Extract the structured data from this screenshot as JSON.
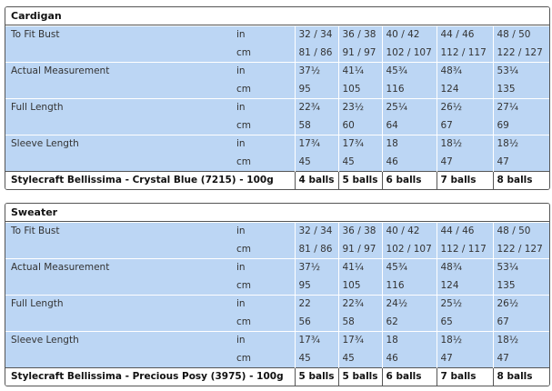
{
  "tables": [
    {
      "title": "Cardigan",
      "rows": [
        {
          "label": "To Fit Bust",
          "in": [
            "32 / 34",
            "36 / 38",
            "40 / 42",
            "44 / 46",
            "48 / 50"
          ],
          "cm": [
            "81 / 86",
            "91 / 97",
            "102 / 107",
            "112 / 117",
            "122 / 127"
          ]
        },
        {
          "label": "Actual Measurement",
          "in": [
            "37½",
            "41¼",
            "45¾",
            "48¾",
            "53¼"
          ],
          "cm": [
            "95",
            "105",
            "116",
            "124",
            "135"
          ]
        },
        {
          "label": "Full Length",
          "in": [
            "22¾",
            "23½",
            "25¼",
            "26½",
            "27¼"
          ],
          "cm": [
            "58",
            "60",
            "64",
            "67",
            "69"
          ]
        },
        {
          "label": "Sleeve Length",
          "in": [
            "17¾",
            "17¾",
            "18",
            "18½",
            "18½"
          ],
          "cm": [
            "45",
            "45",
            "46",
            "47",
            "47"
          ]
        }
      ],
      "unit_in": "in",
      "unit_cm": "cm",
      "yarn": {
        "label": "Stylecraft Bellissima - Crystal Blue (7215) - 100g",
        "values": [
          "4 balls",
          "5 balls",
          "6 balls",
          "7 balls",
          "8 balls"
        ]
      }
    },
    {
      "title": "Sweater",
      "rows": [
        {
          "label": "To Fit Bust",
          "in": [
            "32 / 34",
            "36 / 38",
            "40 / 42",
            "44 / 46",
            "48 / 50"
          ],
          "cm": [
            "81 / 86",
            "91 / 97",
            "102 / 107",
            "112 / 117",
            "122 / 127"
          ]
        },
        {
          "label": "Actual Measurement",
          "in": [
            "37½",
            "41¼",
            "45¾",
            "48¾",
            "53¼"
          ],
          "cm": [
            "95",
            "105",
            "116",
            "124",
            "135"
          ]
        },
        {
          "label": "Full Length",
          "in": [
            "22",
            "22¾",
            "24½",
            "25½",
            "26½"
          ],
          "cm": [
            "56",
            "58",
            "62",
            "65",
            "67"
          ]
        },
        {
          "label": "Sleeve Length",
          "in": [
            "17¾",
            "17¾",
            "18",
            "18½",
            "18½"
          ],
          "cm": [
            "45",
            "45",
            "46",
            "47",
            "47"
          ]
        }
      ],
      "unit_in": "in",
      "unit_cm": "cm",
      "yarn": {
        "label": "Stylecraft Bellissima - Precious Posy (3975) - 100g",
        "values": [
          "5 balls",
          "5 balls",
          "6 balls",
          "7 balls",
          "8 balls"
        ]
      }
    }
  ],
  "colors": {
    "row_fill": "#bcd6f4",
    "border": "#555555"
  }
}
